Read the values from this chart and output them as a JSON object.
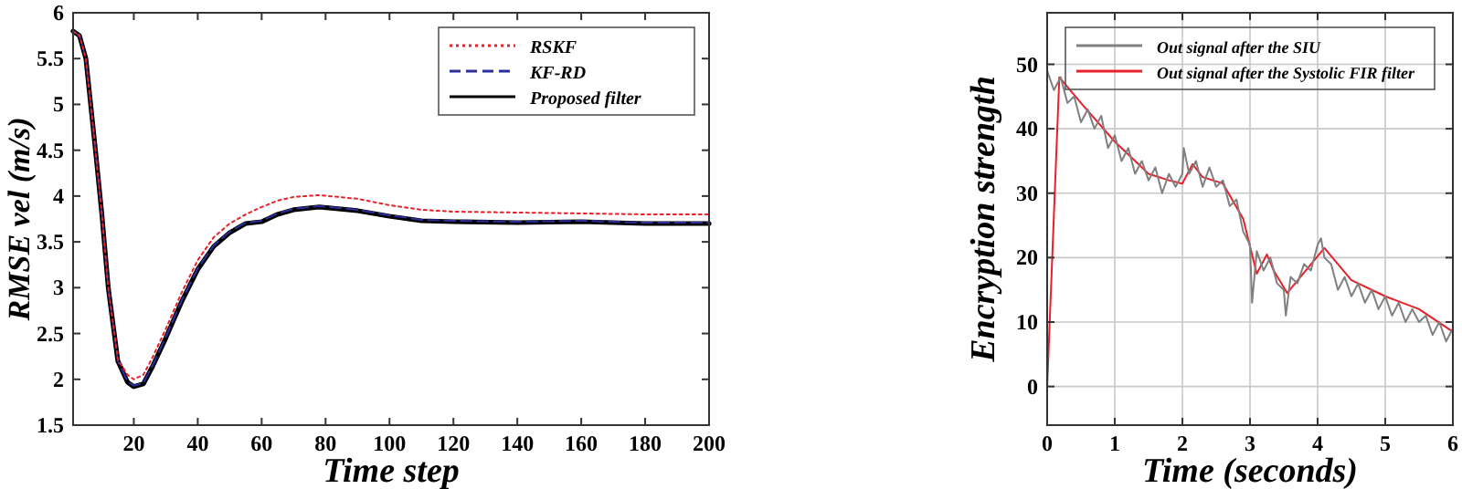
{
  "chart_data": [
    {
      "type": "line",
      "xlabel": "Time step",
      "ylabel": "RMSE vel (m/s)",
      "xlim": [
        1,
        200
      ],
      "ylim": [
        1.5,
        6
      ],
      "xticks": [
        20,
        40,
        60,
        80,
        100,
        120,
        140,
        160,
        180,
        200
      ],
      "yticks": [
        1.5,
        2,
        2.5,
        3,
        3.5,
        4,
        4.5,
        5,
        5.5,
        6
      ],
      "legend": "top right",
      "x": [
        1,
        3,
        5,
        8,
        10,
        12,
        15,
        18,
        20,
        23,
        26,
        30,
        35,
        40,
        45,
        50,
        55,
        60,
        65,
        70,
        78,
        90,
        100,
        110,
        120,
        140,
        160,
        180,
        200
      ],
      "series": [
        {
          "name": "RSKF",
          "color": "#e8202a",
          "line_style": "dotted",
          "values": [
            5.8,
            5.75,
            5.5,
            4.5,
            3.8,
            3.0,
            2.22,
            2.05,
            2.0,
            2.05,
            2.25,
            2.55,
            2.95,
            3.3,
            3.55,
            3.7,
            3.8,
            3.88,
            3.95,
            3.99,
            4.01,
            3.97,
            3.9,
            3.85,
            3.83,
            3.82,
            3.81,
            3.8,
            3.8
          ]
        },
        {
          "name": "KF-RD",
          "color": "#2b2f9c",
          "line_style": "dashed",
          "values": [
            5.8,
            5.75,
            5.5,
            4.5,
            3.8,
            3.0,
            2.2,
            1.98,
            1.93,
            1.96,
            2.16,
            2.46,
            2.86,
            3.21,
            3.46,
            3.61,
            3.71,
            3.73,
            3.81,
            3.86,
            3.89,
            3.85,
            3.79,
            3.74,
            3.73,
            3.72,
            3.73,
            3.71,
            3.71
          ]
        },
        {
          "name": "Proposed filter",
          "color": "#000000",
          "line_style": "solid",
          "values": [
            5.8,
            5.75,
            5.5,
            4.5,
            3.8,
            3.0,
            2.2,
            1.97,
            1.92,
            1.95,
            2.15,
            2.45,
            2.85,
            3.2,
            3.45,
            3.6,
            3.7,
            3.72,
            3.8,
            3.85,
            3.88,
            3.84,
            3.78,
            3.73,
            3.72,
            3.71,
            3.72,
            3.7,
            3.7
          ]
        }
      ]
    },
    {
      "type": "line",
      "xlabel": "Time (seconds)",
      "ylabel": "Encryption strength",
      "xlim": [
        0,
        6
      ],
      "ylim": [
        -6,
        58
      ],
      "xticks": [
        0,
        1,
        2,
        3,
        4,
        5,
        6
      ],
      "yticks": [
        0,
        10,
        20,
        30,
        40,
        50
      ],
      "grid": true,
      "legend": "top",
      "series": [
        {
          "name": "Out signal after the SIU",
          "color": "#808080",
          "line_style": "solid",
          "x": [
            0,
            0.1,
            0.2,
            0.3,
            0.4,
            0.5,
            0.6,
            0.7,
            0.8,
            0.9,
            1.0,
            1.1,
            1.2,
            1.3,
            1.4,
            1.5,
            1.6,
            1.7,
            1.8,
            1.9,
            2.0,
            2.02,
            2.1,
            2.2,
            2.3,
            2.4,
            2.5,
            2.6,
            2.7,
            2.8,
            2.9,
            3.0,
            3.03,
            3.1,
            3.2,
            3.3,
            3.4,
            3.5,
            3.53,
            3.6,
            3.7,
            3.8,
            3.9,
            4.0,
            4.05,
            4.1,
            4.2,
            4.3,
            4.4,
            4.5,
            4.6,
            4.7,
            4.8,
            4.9,
            5.0,
            5.1,
            5.2,
            5.3,
            5.4,
            5.5,
            5.6,
            5.7,
            5.8,
            5.9,
            6.0
          ],
          "values": [
            49,
            46,
            48,
            44,
            45,
            41,
            43,
            40,
            42,
            37,
            39,
            35,
            37,
            33,
            35,
            32,
            34,
            30,
            33,
            31,
            33,
            37,
            33,
            35,
            31,
            34,
            31,
            32,
            28,
            29,
            24,
            22,
            13,
            21,
            18,
            20,
            16,
            15,
            11,
            17,
            16,
            19,
            18,
            22,
            23,
            20,
            19,
            15,
            17,
            14,
            16,
            13,
            15,
            12,
            14,
            11,
            13,
            10,
            12,
            10,
            11,
            8,
            10,
            7,
            9
          ]
        },
        {
          "name": "Out signal after the Systolic FIR filter",
          "color": "#e8202a",
          "line_style": "solid",
          "x": [
            0,
            0.18,
            0.5,
            1.0,
            1.5,
            1.8,
            2.0,
            2.15,
            2.3,
            2.6,
            2.9,
            3.1,
            3.25,
            3.35,
            3.55,
            4.1,
            4.5,
            5.0,
            5.5,
            6.0
          ],
          "values": [
            0,
            48,
            44,
            38,
            33,
            32,
            31.5,
            34.5,
            32.5,
            31.5,
            26,
            17.5,
            20.5,
            18,
            14.5,
            21.5,
            16.5,
            14,
            12,
            8.5
          ]
        }
      ]
    }
  ]
}
